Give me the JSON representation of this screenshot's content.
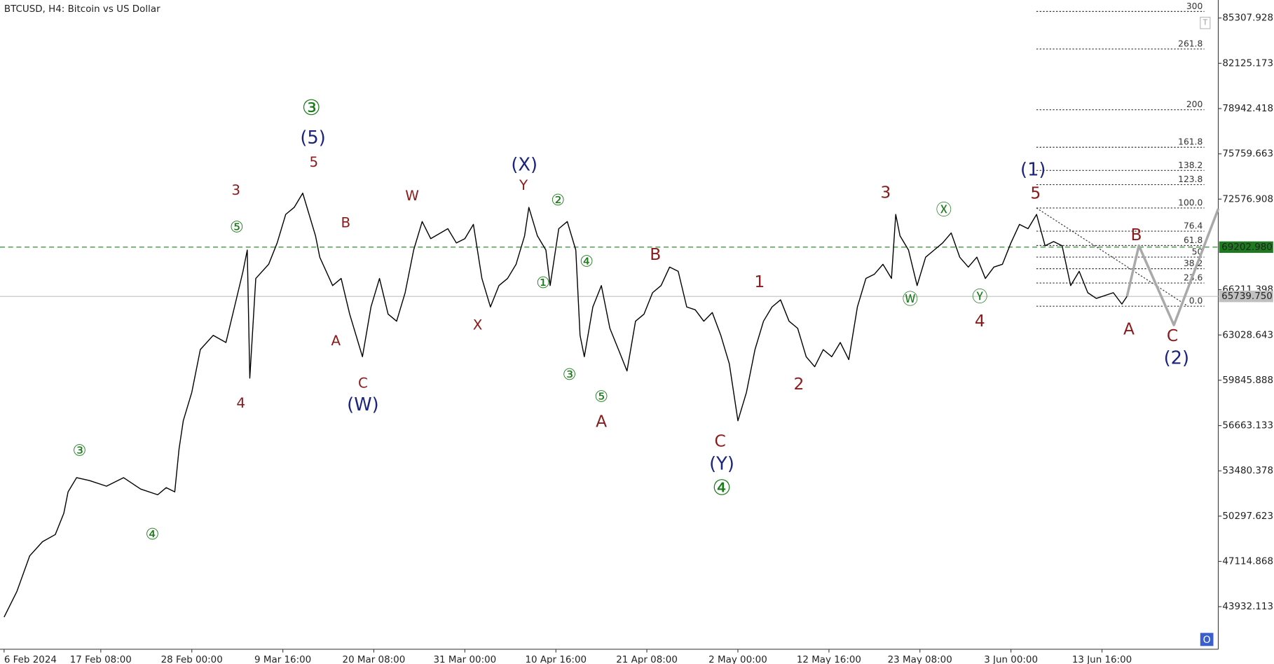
{
  "chart_data": {
    "type": "line",
    "title": "BTCUSD, H4:  Bitcoin vs US Dollar",
    "xlim": [
      0,
      142.3
    ],
    "ylim": [
      40939,
      86574
    ],
    "xticks": [
      {
        "value": 0,
        "label": "6 Feb 2024"
      },
      {
        "value": 11.33,
        "label": "17 Feb 08:00"
      },
      {
        "value": 22,
        "label": "28 Feb 00:00"
      },
      {
        "value": 32.67,
        "label": "9 Mar 16:00"
      },
      {
        "value": 43.33,
        "label": "20 Mar 08:00"
      },
      {
        "value": 54,
        "label": "31 Mar 00:00"
      },
      {
        "value": 64.67,
        "label": "10 Apr 16:00"
      },
      {
        "value": 75.33,
        "label": "21 Apr 08:00"
      },
      {
        "value": 86,
        "label": "2 May 00:00"
      },
      {
        "value": 96.67,
        "label": "12 May 16:00"
      },
      {
        "value": 107.33,
        "label": "23 May 08:00"
      },
      {
        "value": 118,
        "label": "3 Jun 00:00"
      },
      {
        "value": 128.67,
        "label": "13 Jun 16:00"
      }
    ],
    "yticks": [
      43932.113,
      47114.868,
      50297.623,
      53480.378,
      56663.133,
      59845.888,
      63028.643,
      66211.398,
      72576.908,
      75759.663,
      78942.418,
      82125.173,
      85307.928
    ],
    "series": [
      {
        "color": "#000000",
        "x": [
          0,
          1.5,
          3,
          4.5,
          6,
          7,
          7.5,
          8.5,
          10,
          12,
          14,
          16,
          18,
          19,
          20,
          20.5,
          21,
          22,
          23,
          24.5,
          26,
          27,
          28,
          28.5,
          28.8,
          29.5,
          31,
          32,
          33,
          34,
          35,
          36.5,
          37,
          38.5,
          39.5,
          40.5,
          42,
          43,
          44,
          45,
          46,
          47,
          48,
          49,
          50,
          52,
          53,
          54,
          55,
          56,
          57,
          58,
          59,
          60,
          61,
          61.5,
          62.5,
          63.5,
          64,
          65,
          66,
          67,
          67.5,
          68,
          69,
          70,
          71,
          72,
          73,
          74,
          75,
          76,
          77,
          78,
          79,
          80,
          81,
          82,
          83,
          84,
          85,
          86,
          87,
          88,
          89,
          90,
          91,
          92,
          93,
          94,
          95,
          96,
          97,
          98,
          99,
          100,
          101,
          102,
          103,
          104,
          104.5,
          105,
          106,
          107,
          108,
          109,
          110,
          111,
          112,
          113,
          114,
          115,
          116,
          117,
          118,
          119,
          120,
          121,
          122,
          123,
          124,
          125,
          126,
          127,
          128,
          130,
          131,
          131.6
        ],
        "values": [
          43200,
          45000,
          47500,
          48500,
          49000,
          50500,
          52000,
          53000,
          52800,
          52400,
          53000,
          52200,
          51800,
          52300,
          52000,
          55000,
          57000,
          59000,
          62000,
          63000,
          62500,
          65000,
          67500,
          69000,
          60000,
          67000,
          68000,
          69500,
          71500,
          72000,
          73000,
          70000,
          68500,
          66500,
          67000,
          64500,
          61500,
          65000,
          67000,
          64500,
          64000,
          66000,
          69000,
          71000,
          69800,
          70500,
          69500,
          69800,
          70800,
          67000,
          65000,
          66500,
          67000,
          68000,
          70000,
          72000,
          70000,
          69000,
          66500,
          70500,
          71000,
          69000,
          63000,
          61500,
          65000,
          66500,
          63500,
          62000,
          60500,
          64000,
          64500,
          66000,
          66500,
          67800,
          67500,
          65000,
          64800,
          64000,
          64600,
          63000,
          61000,
          57000,
          59000,
          62000,
          64000,
          65000,
          65500,
          64000,
          63500,
          61500,
          60800,
          62000,
          61500,
          62500,
          61300,
          65000,
          67000,
          67300,
          68000,
          67000,
          71500,
          70000,
          69000,
          66500,
          68500,
          69000,
          69500,
          70200,
          68500,
          67800,
          68500,
          67000,
          67800,
          68000,
          69500,
          70800,
          70500,
          71500,
          69300,
          69600,
          69300,
          66500,
          67500,
          66000,
          65600,
          66000,
          65200,
          65740
        ]
      },
      {
        "color": "#a9a9a9",
        "x": [
          131.6,
          133.0,
          137.1,
          142.3
        ],
        "values": [
          65740,
          69310,
          63730,
          71900
        ]
      }
    ],
    "price_lines": [
      {
        "value": 69202.98,
        "label": "69202.980",
        "color": "#1e7a1e",
        "dashed": true
      },
      {
        "value": 65739.75,
        "label": "65739.750",
        "color": "#c0c0c0",
        "dashed": false
      }
    ],
    "fibonacci": {
      "low": 65050,
      "high": 71956,
      "levels": [
        {
          "value": 0,
          "label": "0.0"
        },
        23.6,
        38.2,
        50,
        61.8,
        76.4,
        {
          "value": 100,
          "label": "100.0"
        },
        123.8,
        138.2,
        161.8,
        200,
        261.8,
        300
      ]
    },
    "annotations": [
      {
        "text": "③",
        "color": "#1b7a1b"
      },
      {
        "text": "④",
        "color": "#1b7a1b"
      },
      {
        "text": "⑤",
        "color": "#1b7a1b"
      },
      {
        "text": "3",
        "color": "#8b1a1a"
      },
      {
        "text": "4",
        "color": "#8b1a1a"
      },
      {
        "text": "③",
        "color": "#1b7a1b"
      },
      {
        "text": "(5)",
        "color": "#1a237e"
      },
      {
        "text": "5",
        "color": "#8b1a1a"
      },
      {
        "text": "B",
        "color": "#8b1a1a"
      },
      {
        "text": "A",
        "color": "#8b1a1a"
      },
      {
        "text": "C",
        "color": "#8b1a1a"
      },
      {
        "text": "(W)",
        "color": "#1a237e"
      },
      {
        "text": "W",
        "color": "#8b1a1a"
      },
      {
        "text": "(X)",
        "color": "#1a237e"
      },
      {
        "text": "Y",
        "color": "#8b1a1a"
      },
      {
        "text": "X",
        "color": "#8b1a1a"
      },
      {
        "text": "②",
        "color": "#1b7a1b"
      },
      {
        "text": "④",
        "color": "#1b7a1b"
      },
      {
        "text": "①",
        "color": "#1b7a1b"
      },
      {
        "text": "③",
        "color": "#1b7a1b"
      },
      {
        "text": "⑤",
        "color": "#1b7a1b"
      },
      {
        "text": "A",
        "color": "#8b1a1a"
      },
      {
        "text": "B",
        "color": "#8b1a1a"
      },
      {
        "text": "C",
        "color": "#8b1a1a"
      },
      {
        "text": "(Y)",
        "color": "#1a237e"
      },
      {
        "text": "④",
        "color": "#1b7a1b"
      },
      {
        "text": "1",
        "color": "#8b1a1a"
      },
      {
        "text": "2",
        "color": "#8b1a1a"
      },
      {
        "text": "3",
        "color": "#8b1a1a"
      },
      {
        "text": "Ⓦ",
        "color": "#1b7a1b"
      },
      {
        "text": "Ⓧ",
        "color": "#1b7a1b"
      },
      {
        "text": "Ⓨ",
        "color": "#1b7a1b"
      },
      {
        "text": "4",
        "color": "#8b1a1a"
      },
      {
        "text": "(1)",
        "color": "#1a237e"
      },
      {
        "text": "5",
        "color": "#8b1a1a"
      },
      {
        "text": "B",
        "color": "#8b1a1a"
      },
      {
        "text": "A",
        "color": "#8b1a1a"
      },
      {
        "text": "C",
        "color": "#8b1a1a"
      },
      {
        "text": "(2)",
        "color": "#1a237e"
      }
    ]
  }
}
